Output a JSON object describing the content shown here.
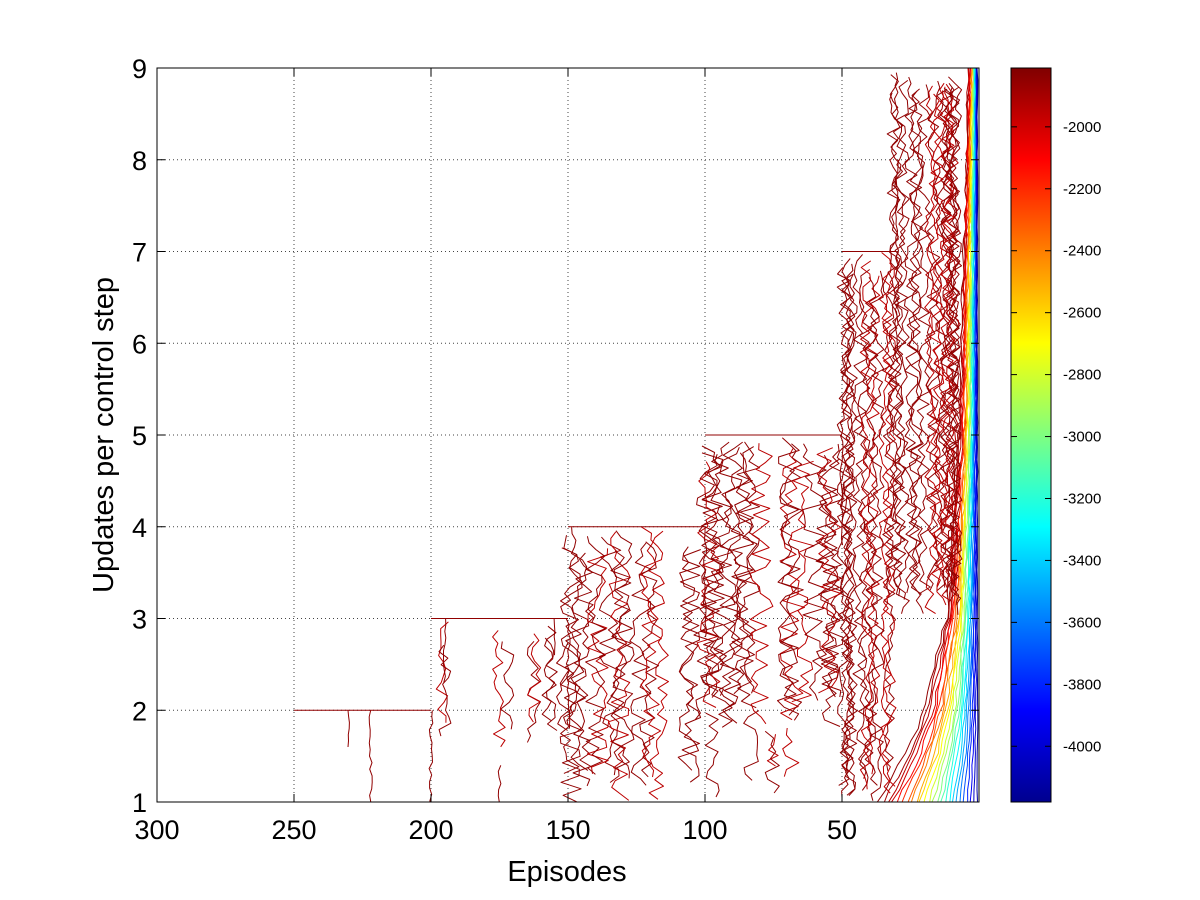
{
  "chart_data": {
    "type": "contour",
    "title": "",
    "xlabel": "Episodes",
    "ylabel": "Updates per control step",
    "x_reversed": true,
    "xlim": [
      300,
      0
    ],
    "ylim": [
      1,
      9
    ],
    "x_ticks": [
      300,
      250,
      200,
      150,
      100,
      50
    ],
    "x_tick_labels": [
      "300",
      "250",
      "200",
      "150",
      "100",
      "50"
    ],
    "y_ticks": [
      1,
      2,
      3,
      4,
      5,
      6,
      7,
      8,
      9
    ],
    "y_tick_labels": [
      "1",
      "2",
      "3",
      "4",
      "5",
      "6",
      "7",
      "8",
      "9"
    ],
    "grid": true,
    "colormap": "jet",
    "colorbar": {
      "range": [
        -4180,
        -1810
      ],
      "ticks": [
        -2000,
        -2200,
        -2400,
        -2600,
        -2800,
        -3000,
        -3200,
        -3400,
        -3600,
        -3800,
        -4000
      ],
      "tick_labels": [
        "-2000",
        "-2200",
        "-2400",
        "-2600",
        "-2800",
        "-3000",
        "-3200",
        "-3400",
        "-3600",
        "-3800",
        "-4000"
      ]
    },
    "contour_levels": [
      -1850,
      -1900,
      -1950,
      -2000,
      -2100,
      -2200,
      -2300,
      -2400,
      -2500,
      -2600,
      -2700,
      -2800,
      -2900,
      -3000,
      -3100,
      -3200,
      -3300,
      -3400,
      -3500,
      -3600,
      -3700,
      -3800,
      -3900,
      -4000,
      -4100
    ],
    "data_extent": [
      {
        "updates": 1,
        "episodes_max": 300
      },
      {
        "updates": 2,
        "episodes_max": 250
      },
      {
        "updates": 3,
        "episodes_max": 200
      },
      {
        "updates": 4,
        "episodes_max": 150
      },
      {
        "updates": 5,
        "episodes_max": 100
      },
      {
        "updates": 7,
        "episodes_max": 50
      },
      {
        "updates": 8,
        "episodes_max": 30
      },
      {
        "updates": 9,
        "episodes_max": 30
      }
    ],
    "frontier_episode_by_updates": [
      {
        "updates": 1,
        "episode": 22
      },
      {
        "updates": 1.5,
        "episode": 15
      },
      {
        "updates": 2,
        "episode": 10
      },
      {
        "updates": 3,
        "episode": 6
      },
      {
        "updates": 5,
        "episode": 3
      },
      {
        "updates": 9,
        "episode": 1
      }
    ],
    "extra_strands": [
      {
        "x": 222,
        "y": [
          1.0,
          2.0
        ]
      },
      {
        "x": 230,
        "y": [
          1.6,
          2.0
        ]
      },
      {
        "x": 155,
        "y": [
          2.6,
          3.0
        ]
      },
      {
        "x": 195,
        "y": [
          2.3,
          3.0
        ]
      },
      {
        "x": 175,
        "y": [
          1.0,
          1.4
        ]
      }
    ]
  }
}
